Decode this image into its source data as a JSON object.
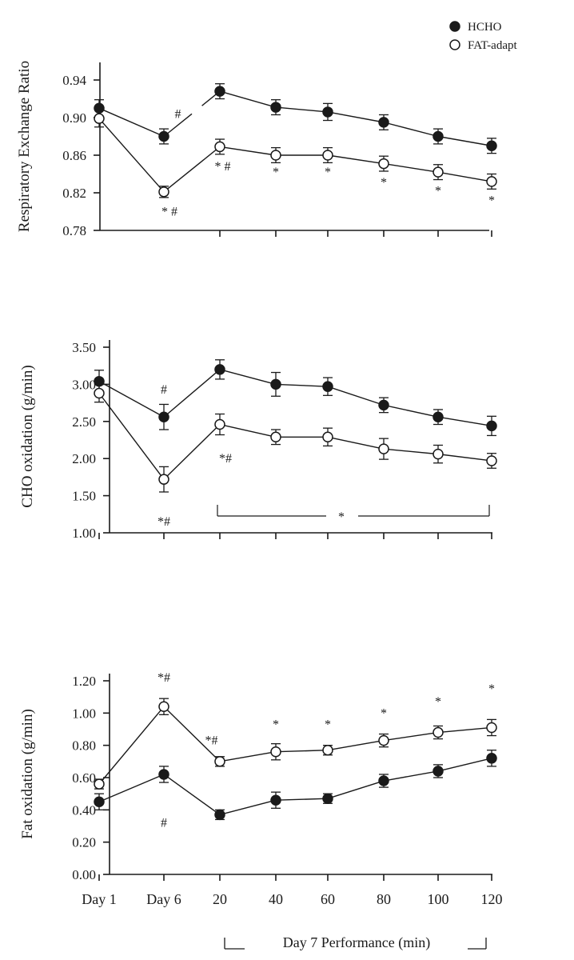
{
  "colors": {
    "ink": "#1a1a1a",
    "background": "#ffffff"
  },
  "chart_data": [
    {
      "type": "line",
      "title": "",
      "xlabel": "",
      "ylabel": "Respiratory Exchange Ratio",
      "ylim": [
        0.78,
        0.94
      ],
      "yticks": [
        "0.78",
        "0.82",
        "0.86",
        "0.90",
        "0.94"
      ],
      "legend_position": "top-right",
      "legend": [
        "HCHO",
        "FAT-adapt"
      ],
      "series": [
        {
          "name": "HCHO",
          "marker": "filled",
          "values": [
            0.91,
            0.88,
            0.928,
            0.911,
            0.906,
            0.895,
            0.88,
            0.87
          ],
          "errors": [
            0.009,
            0.008,
            0.008,
            0.008,
            0.009,
            0.008,
            0.008,
            0.008
          ]
        },
        {
          "name": "FAT-adapt",
          "marker": "open",
          "values": [
            0.899,
            0.821,
            0.869,
            0.86,
            0.86,
            0.851,
            0.842,
            0.832
          ],
          "errors": [
            0.009,
            0.006,
            0.008,
            0.008,
            0.008,
            0.008,
            0.008,
            0.008
          ]
        }
      ],
      "annotations": [
        {
          "text": "#",
          "x": 1.25,
          "y": 0.904
        },
        {
          "text": "* #",
          "x": 1.1,
          "y": 0.8
        },
        {
          "text": "* #",
          "x": 2.05,
          "y": 0.848
        },
        {
          "text": "*",
          "x": 3,
          "y": 0.842
        },
        {
          "text": "*",
          "x": 4,
          "y": 0.842
        },
        {
          "text": "*",
          "x": 5,
          "y": 0.831
        },
        {
          "text": "*",
          "x": 6,
          "y": 0.822
        },
        {
          "text": "*",
          "x": 7,
          "y": 0.812
        }
      ]
    },
    {
      "type": "line",
      "title": "",
      "xlabel": "",
      "ylabel": "CHO oxidation (g/min)",
      "ylim": [
        1.0,
        3.5
      ],
      "yticks": [
        "1.00",
        "1.50",
        "2.00",
        "2.50",
        "3.00",
        "3.50"
      ],
      "series": [
        {
          "name": "HCHO",
          "marker": "filled",
          "values": [
            3.04,
            2.56,
            3.2,
            3.0,
            2.97,
            2.72,
            2.56,
            2.44
          ],
          "errors": [
            0.15,
            0.17,
            0.13,
            0.16,
            0.12,
            0.1,
            0.1,
            0.13
          ]
        },
        {
          "name": "FAT-adapt",
          "marker": "open",
          "values": [
            2.88,
            1.72,
            2.46,
            2.29,
            2.29,
            2.13,
            2.06,
            1.97
          ],
          "errors": [
            0.12,
            0.17,
            0.14,
            0.1,
            0.12,
            0.14,
            0.12,
            0.1
          ]
        }
      ],
      "annotations": [
        {
          "text": "#",
          "x": 1,
          "y": 2.93
        },
        {
          "text": "*#",
          "x": 1,
          "y": 1.15
        },
        {
          "text": "*#",
          "x": 2.1,
          "y": 2.0
        }
      ],
      "bracket": {
        "from": 2,
        "to": 7,
        "label": "*"
      }
    },
    {
      "type": "line",
      "title": "",
      "ylabel": "Fat oxidation (g/min)",
      "ylim": [
        0.0,
        1.2
      ],
      "yticks": [
        "0.00",
        "0.20",
        "0.40",
        "0.60",
        "0.80",
        "1.00",
        "1.20"
      ],
      "categories": [
        "Day 1",
        "Day 6",
        "20",
        "40",
        "60",
        "80",
        "100",
        "120"
      ],
      "xlabel": "Day 7 Performance (min)",
      "series": [
        {
          "name": "HCHO",
          "marker": "filled",
          "values": [
            0.45,
            0.62,
            0.37,
            0.46,
            0.47,
            0.58,
            0.64,
            0.72
          ],
          "errors": [
            0.05,
            0.05,
            0.03,
            0.05,
            0.03,
            0.04,
            0.04,
            0.05
          ]
        },
        {
          "name": "FAT-adapt",
          "marker": "open",
          "values": [
            0.56,
            1.04,
            0.7,
            0.76,
            0.77,
            0.83,
            0.88,
            0.91
          ],
          "errors": [
            0.03,
            0.05,
            0.03,
            0.05,
            0.03,
            0.04,
            0.04,
            0.05
          ]
        }
      ],
      "annotations": [
        {
          "text": "*#",
          "x": 1,
          "y": 1.22
        },
        {
          "text": "#",
          "x": 1,
          "y": 0.32
        },
        {
          "text": "*#",
          "x": 1.85,
          "y": 0.83
        },
        {
          "text": "*",
          "x": 3,
          "y": 0.93
        },
        {
          "text": "*",
          "x": 4,
          "y": 0.93
        },
        {
          "text": "*",
          "x": 5,
          "y": 1.0
        },
        {
          "text": "*",
          "x": 6,
          "y": 1.07
        },
        {
          "text": "*",
          "x": 7,
          "y": 1.15
        }
      ]
    }
  ]
}
